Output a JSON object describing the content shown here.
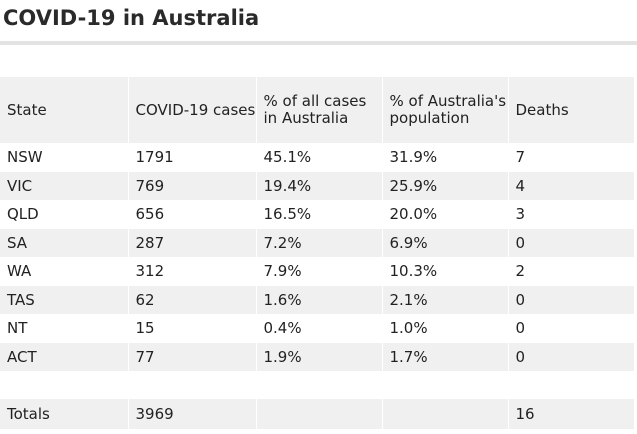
{
  "title": "COVID-19 in Australia",
  "table": {
    "headers": [
      "State",
      "COVID-19 cases",
      "% of all cases in Australia",
      "% of Australia's population",
      "Deaths"
    ],
    "rows": [
      [
        "NSW",
        "1791",
        "45.1%",
        "31.9%",
        "7"
      ],
      [
        "VIC",
        "769",
        "19.4%",
        "25.9%",
        "4"
      ],
      [
        "QLD",
        "656",
        "16.5%",
        "20.0%",
        "3"
      ],
      [
        "SA",
        "287",
        "7.2%",
        "6.9%",
        "0"
      ],
      [
        "WA",
        "312",
        "7.9%",
        "10.3%",
        "2"
      ],
      [
        "TAS",
        "62",
        "1.6%",
        "2.1%",
        "0"
      ],
      [
        "NT",
        "15",
        "0.4%",
        "1.0%",
        "0"
      ],
      [
        "ACT",
        "77",
        "1.9%",
        "1.7%",
        "0"
      ]
    ],
    "totals": [
      "Totals",
      "3969",
      "",
      "",
      "16"
    ]
  }
}
